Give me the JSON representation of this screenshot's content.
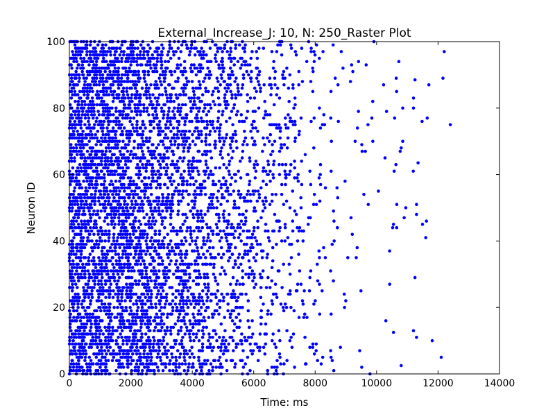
{
  "chart_data": {
    "type": "scatter",
    "title": "External_Increase_J: 10, N: 250_Raster Plot",
    "xlabel": "Time: ms",
    "ylabel": "Neuron ID",
    "xlim": [
      0,
      14000
    ],
    "ylim": [
      0,
      100
    ],
    "xticks": [
      0,
      2000,
      4000,
      6000,
      8000,
      10000,
      12000,
      14000
    ],
    "yticks": [
      0,
      20,
      40,
      60,
      80,
      100
    ],
    "grid": false,
    "marker_color": "#0000ff",
    "neuron_ids": {
      "from": 0,
      "to": 100
    },
    "spike_density": {
      "description_points_ms": [
        0,
        2000,
        4000,
        5000,
        6000,
        7000,
        8000,
        9000,
        10000,
        11000,
        12500,
        14000
      ],
      "spikes_per_neuron_per_1000ms": [
        9.5,
        8.5,
        5.5,
        4.0,
        2.6,
        1.6,
        0.9,
        0.45,
        0.22,
        0.1,
        0.02,
        0
      ]
    },
    "outlier_spikes": [
      {
        "x": 12200,
        "y": 97
      },
      {
        "x": 12400,
        "y": 75
      },
      {
        "x": 11600,
        "y": 41
      },
      {
        "x": 11300,
        "y": 51
      },
      {
        "x": 11300,
        "y": 48
      },
      {
        "x": 11250,
        "y": 29
      },
      {
        "x": 11300,
        "y": 11
      },
      {
        "x": 11200,
        "y": 13
      },
      {
        "x": 10850,
        "y": 80
      },
      {
        "x": 10850,
        "y": 70
      },
      {
        "x": 10800,
        "y": 68
      },
      {
        "x": 10950,
        "y": 50
      },
      {
        "x": 10800,
        "y": 2.5
      },
      {
        "x": 11350,
        "y": 63.5
      },
      {
        "x": 11250,
        "y": 88.5
      },
      {
        "x": 11200,
        "y": 83
      },
      {
        "x": 11200,
        "y": 80
      },
      {
        "x": 10550,
        "y": 45
      },
      {
        "x": 10550,
        "y": 12.5
      }
    ]
  }
}
